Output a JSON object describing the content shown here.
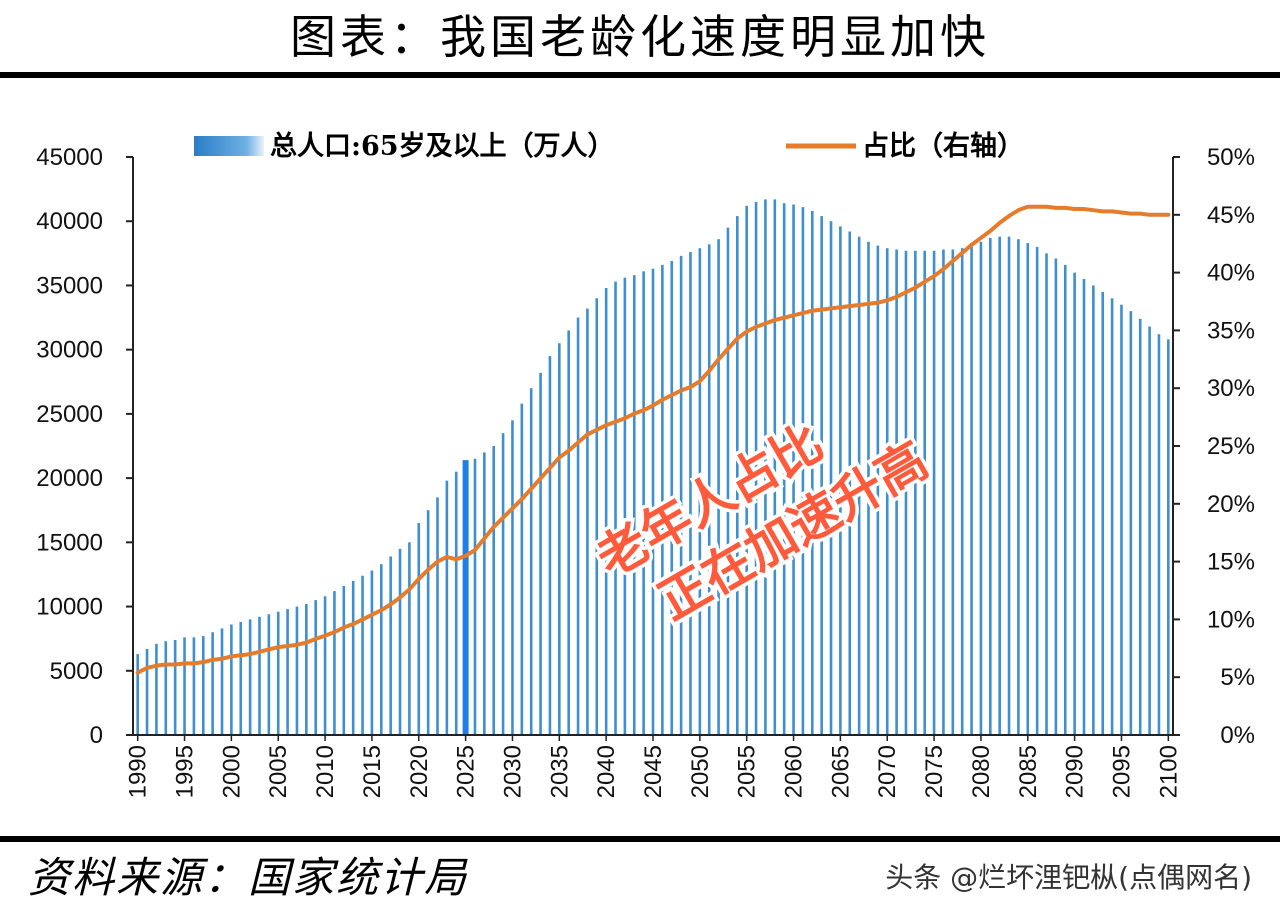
{
  "header": {
    "title": "图表：我国老龄化速度明显加快"
  },
  "footer": {
    "source": "资料来源：国家统计局",
    "watermark": "头条 @烂坏浬钯枞(点偶网名)"
  },
  "colors": {
    "bar": "#3d8fd0",
    "bar_highlight": "#1e7fe6",
    "line": "#e47c2c",
    "overlay": "#ff5a3c"
  },
  "chart_data": {
    "type": "bar+line",
    "title": "图表：我国老龄化速度明显加快",
    "x": [
      1990,
      1991,
      1992,
      1993,
      1994,
      1995,
      1996,
      1997,
      1998,
      1999,
      2000,
      2001,
      2002,
      2003,
      2004,
      2005,
      2006,
      2007,
      2008,
      2009,
      2010,
      2011,
      2012,
      2013,
      2014,
      2015,
      2016,
      2017,
      2018,
      2019,
      2020,
      2021,
      2022,
      2023,
      2024,
      2025,
      2026,
      2027,
      2028,
      2029,
      2030,
      2031,
      2032,
      2033,
      2034,
      2035,
      2036,
      2037,
      2038,
      2039,
      2040,
      2041,
      2042,
      2043,
      2044,
      2045,
      2046,
      2047,
      2048,
      2049,
      2050,
      2051,
      2052,
      2053,
      2054,
      2055,
      2056,
      2057,
      2058,
      2059,
      2060,
      2061,
      2062,
      2063,
      2064,
      2065,
      2066,
      2067,
      2068,
      2069,
      2070,
      2071,
      2072,
      2073,
      2074,
      2075,
      2076,
      2077,
      2078,
      2079,
      2080,
      2081,
      2082,
      2083,
      2084,
      2085,
      2086,
      2087,
      2088,
      2089,
      2090,
      2091,
      2092,
      2093,
      2094,
      2095,
      2096,
      2097,
      2098,
      2099,
      2100
    ],
    "x_tick_labels": [
      "1990",
      "1995",
      "2000",
      "2005",
      "2010",
      "2015",
      "2020",
      "2025",
      "2030",
      "2035",
      "2040",
      "2045",
      "2050",
      "2055",
      "2060",
      "2065",
      "2070",
      "2075",
      "2080",
      "2085",
      "2090",
      "2095",
      "2100"
    ],
    "highlight_year": 2025,
    "series": [
      {
        "name": "总人口:65岁及以上（万人）",
        "type": "bar",
        "axis": "left",
        "values": [
          6300,
          6700,
          7100,
          7300,
          7400,
          7600,
          7600,
          7700,
          8000,
          8300,
          8600,
          8800,
          9000,
          9200,
          9400,
          9600,
          9800,
          10000,
          10200,
          10500,
          10800,
          11200,
          11600,
          12000,
          12400,
          12800,
          13300,
          13900,
          14500,
          15000,
          16500,
          17500,
          18500,
          19800,
          20500,
          21400,
          21500,
          22000,
          22500,
          23500,
          24500,
          25800,
          27000,
          28200,
          29500,
          30500,
          31500,
          32500,
          33200,
          34000,
          34800,
          35300,
          35600,
          35800,
          36100,
          36300,
          36600,
          36900,
          37300,
          37600,
          37900,
          38200,
          38600,
          39500,
          40400,
          41200,
          41500,
          41700,
          41700,
          41400,
          41300,
          41100,
          40800,
          40400,
          40000,
          39600,
          39200,
          38800,
          38400,
          38100,
          37900,
          37800,
          37700,
          37700,
          37700,
          37700,
          37800,
          37800,
          37900,
          38000,
          38400,
          38700,
          38800,
          38800,
          38600,
          38300,
          38000,
          37500,
          37100,
          36600,
          36000,
          35500,
          35000,
          34500,
          34000,
          33500,
          33000,
          32400,
          31800,
          31200,
          30800
        ]
      },
      {
        "name": "占比（右轴）",
        "type": "line",
        "axis": "right",
        "values": [
          5.4,
          5.8,
          6.0,
          6.1,
          6.1,
          6.2,
          6.2,
          6.3,
          6.5,
          6.6,
          6.8,
          6.9,
          7.0,
          7.2,
          7.4,
          7.6,
          7.7,
          7.8,
          8.0,
          8.3,
          8.6,
          8.9,
          9.3,
          9.6,
          10.0,
          10.4,
          10.8,
          11.3,
          11.9,
          12.6,
          13.5,
          14.3,
          15.0,
          15.4,
          15.2,
          15.5,
          16.0,
          17.0,
          18.0,
          18.8,
          19.6,
          20.4,
          21.3,
          22.2,
          23.1,
          24.0,
          24.6,
          25.3,
          26.0,
          26.4,
          26.8,
          27.1,
          27.4,
          27.8,
          28.1,
          28.5,
          29.0,
          29.4,
          29.8,
          30.1,
          30.6,
          31.5,
          32.5,
          33.4,
          34.3,
          34.9,
          35.3,
          35.6,
          35.9,
          36.1,
          36.3,
          36.5,
          36.7,
          36.8,
          36.9,
          37.0,
          37.1,
          37.2,
          37.3,
          37.4,
          37.6,
          37.9,
          38.3,
          38.7,
          39.2,
          39.7,
          40.3,
          41.0,
          41.7,
          42.4,
          43.0,
          43.6,
          44.3,
          44.9,
          45.4,
          45.7,
          45.7,
          45.7,
          45.6,
          45.6,
          45.5,
          45.5,
          45.4,
          45.3,
          45.3,
          45.2,
          45.1,
          45.1,
          45.0,
          45.0,
          45.0
        ]
      }
    ],
    "y_left": {
      "min": 0,
      "max": 45000,
      "ticks": [
        "0",
        "5000",
        "10000",
        "15000",
        "20000",
        "25000",
        "30000",
        "35000",
        "40000",
        "45000"
      ]
    },
    "y_right": {
      "min": 0,
      "max": 50,
      "ticks": [
        "0%",
        "5%",
        "10%",
        "15%",
        "20%",
        "25%",
        "30%",
        "35%",
        "40%",
        "45%",
        "50%"
      ]
    },
    "legend": [
      {
        "label": "总人口:65岁及以上（万人）",
        "kind": "bar"
      },
      {
        "label": "占比（右轴）",
        "kind": "line"
      }
    ],
    "legend_position": "top",
    "annotation": [
      "老年人占比",
      "正在加速升高"
    ]
  }
}
